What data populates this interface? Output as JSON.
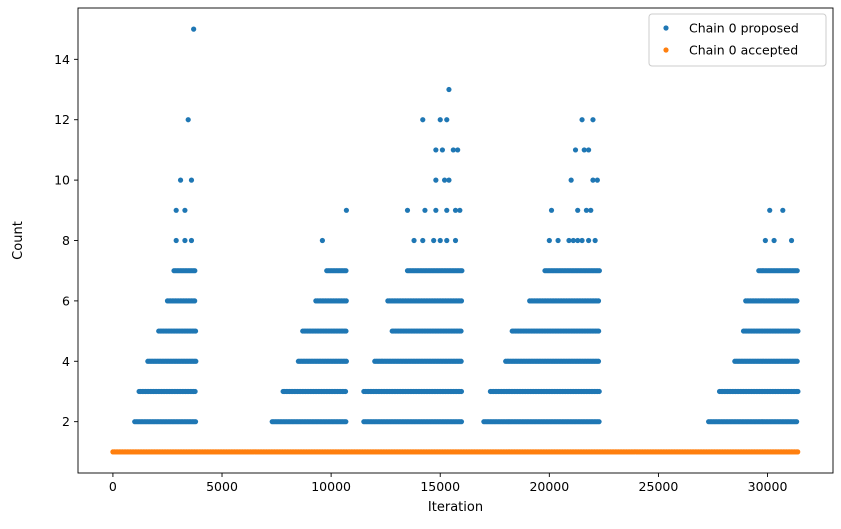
{
  "chart_data": {
    "type": "scatter",
    "title": "",
    "xlabel": "Iteration",
    "ylabel": "Count",
    "xlim": [
      -1600,
      33000
    ],
    "ylim": [
      0.3,
      15.7
    ],
    "xticks": [
      0,
      5000,
      10000,
      15000,
      20000,
      25000,
      30000
    ],
    "yticks": [
      2,
      4,
      6,
      8,
      10,
      12,
      14
    ],
    "grid": false,
    "legend_position": "top-right",
    "x_range": [
      0,
      31400
    ],
    "series": [
      {
        "name": "Chain 0 proposed",
        "color": "#1f77b4",
        "bands": [
          {
            "y": 2,
            "segments": [
              [
                1000,
                3800
              ],
              [
                7300,
                10700
              ],
              [
                11500,
                16000
              ],
              [
                17000,
                22300
              ],
              [
                27300,
                31400
              ]
            ]
          },
          {
            "y": 3,
            "segments": [
              [
                1200,
                3800
              ],
              [
                7800,
                10700
              ],
              [
                11500,
                16000
              ],
              [
                17300,
                22300
              ],
              [
                27800,
                31400
              ]
            ]
          },
          {
            "y": 4,
            "segments": [
              [
                1600,
                3800
              ],
              [
                8500,
                10700
              ],
              [
                12000,
                16000
              ],
              [
                18000,
                22300
              ],
              [
                28500,
                31400
              ]
            ]
          },
          {
            "y": 5,
            "segments": [
              [
                2100,
                3800
              ],
              [
                8700,
                10700
              ],
              [
                12800,
                16000
              ],
              [
                18300,
                22300
              ],
              [
                28900,
                31400
              ]
            ]
          },
          {
            "y": 6,
            "segments": [
              [
                2500,
                3800
              ],
              [
                9300,
                10700
              ],
              [
                12600,
                16000
              ],
              [
                19100,
                22300
              ],
              [
                29000,
                31400
              ]
            ]
          },
          {
            "y": 7,
            "segments": [
              [
                2800,
                3800
              ],
              [
                9800,
                10700
              ],
              [
                13500,
                16000
              ],
              [
                19800,
                22300
              ],
              [
                29600,
                31400
              ]
            ]
          }
        ],
        "points": [
          {
            "x": 2900,
            "y": 8
          },
          {
            "x": 3300,
            "y": 8
          },
          {
            "x": 3600,
            "y": 8
          },
          {
            "x": 2900,
            "y": 9
          },
          {
            "x": 3300,
            "y": 9
          },
          {
            "x": 3100,
            "y": 10
          },
          {
            "x": 3600,
            "y": 10
          },
          {
            "x": 3450,
            "y": 12
          },
          {
            "x": 3700,
            "y": 15
          },
          {
            "x": 9600,
            "y": 8
          },
          {
            "x": 10700,
            "y": 9
          },
          {
            "x": 13800,
            "y": 8
          },
          {
            "x": 14200,
            "y": 8
          },
          {
            "x": 14700,
            "y": 8
          },
          {
            "x": 15000,
            "y": 8
          },
          {
            "x": 15300,
            "y": 8
          },
          {
            "x": 15700,
            "y": 8
          },
          {
            "x": 13500,
            "y": 9
          },
          {
            "x": 14300,
            "y": 9
          },
          {
            "x": 14800,
            "y": 9
          },
          {
            "x": 15300,
            "y": 9
          },
          {
            "x": 15700,
            "y": 9
          },
          {
            "x": 15900,
            "y": 9
          },
          {
            "x": 14800,
            "y": 10
          },
          {
            "x": 15200,
            "y": 10
          },
          {
            "x": 15400,
            "y": 10
          },
          {
            "x": 14800,
            "y": 11
          },
          {
            "x": 15100,
            "y": 11
          },
          {
            "x": 15600,
            "y": 11
          },
          {
            "x": 15800,
            "y": 11
          },
          {
            "x": 14200,
            "y": 12
          },
          {
            "x": 15000,
            "y": 12
          },
          {
            "x": 15300,
            "y": 12
          },
          {
            "x": 15400,
            "y": 13
          },
          {
            "x": 20000,
            "y": 8
          },
          {
            "x": 20400,
            "y": 8
          },
          {
            "x": 20900,
            "y": 8
          },
          {
            "x": 21100,
            "y": 8
          },
          {
            "x": 21300,
            "y": 8
          },
          {
            "x": 21500,
            "y": 8
          },
          {
            "x": 21800,
            "y": 8
          },
          {
            "x": 22100,
            "y": 8
          },
          {
            "x": 20100,
            "y": 9
          },
          {
            "x": 21300,
            "y": 9
          },
          {
            "x": 21700,
            "y": 9
          },
          {
            "x": 21900,
            "y": 9
          },
          {
            "x": 21000,
            "y": 10
          },
          {
            "x": 22000,
            "y": 10
          },
          {
            "x": 22200,
            "y": 10
          },
          {
            "x": 21200,
            "y": 11
          },
          {
            "x": 21600,
            "y": 11
          },
          {
            "x": 21800,
            "y": 11
          },
          {
            "x": 21500,
            "y": 12
          },
          {
            "x": 22000,
            "y": 12
          },
          {
            "x": 29900,
            "y": 8
          },
          {
            "x": 30300,
            "y": 8
          },
          {
            "x": 31100,
            "y": 8
          },
          {
            "x": 30100,
            "y": 9
          },
          {
            "x": 30700,
            "y": 9
          }
        ]
      },
      {
        "name": "Chain 0 accepted",
        "color": "#ff7f0e",
        "bands": [
          {
            "y": 1,
            "segments": [
              [
                0,
                31400
              ]
            ]
          }
        ],
        "points": []
      }
    ]
  }
}
